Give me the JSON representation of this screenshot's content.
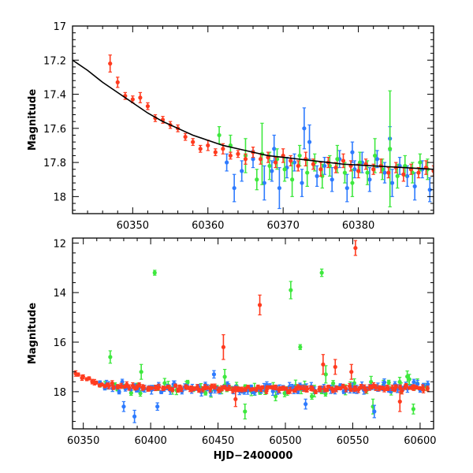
{
  "chart_data": [
    {
      "type": "scatter",
      "title": "",
      "xlabel": "",
      "ylabel": "Magnitude",
      "y_inverted": true,
      "xlim": [
        60342,
        60390
      ],
      "ylim": [
        17.0,
        18.1
      ],
      "x_ticks": [
        60350,
        60360,
        60370,
        60380
      ],
      "y_ticks": [
        17,
        17.2,
        17.4,
        17.6,
        17.8,
        18
      ],
      "series": [
        {
          "color": "#ff3b1f",
          "points": [
            [
              60347.0,
              17.22,
              0.05
            ],
            [
              60348.0,
              17.33,
              0.03
            ],
            [
              60349.0,
              17.41,
              0.02
            ],
            [
              60350.0,
              17.43,
              0.02
            ],
            [
              60351.0,
              17.42,
              0.03
            ],
            [
              60352.0,
              17.47,
              0.02
            ],
            [
              60353.0,
              17.54,
              0.02
            ],
            [
              60354.0,
              17.55,
              0.02
            ],
            [
              60355.0,
              17.58,
              0.02
            ],
            [
              60356.0,
              17.6,
              0.02
            ],
            [
              60357.0,
              17.65,
              0.02
            ],
            [
              60358.0,
              17.68,
              0.02
            ],
            [
              60359.0,
              17.72,
              0.02
            ],
            [
              60360.0,
              17.7,
              0.03
            ],
            [
              60361.0,
              17.74,
              0.02
            ],
            [
              60362.0,
              17.72,
              0.03
            ],
            [
              60363.0,
              17.76,
              0.02
            ],
            [
              60364.0,
              17.75,
              0.02
            ],
            [
              60365.0,
              17.78,
              0.03
            ],
            [
              60366.0,
              17.74,
              0.03
            ],
            [
              60367.0,
              17.78,
              0.03
            ],
            [
              60368.0,
              17.77,
              0.03
            ],
            [
              60369.0,
              17.8,
              0.03
            ],
            [
              60370.0,
              17.76,
              0.04
            ],
            [
              60371.0,
              17.79,
              0.03
            ],
            [
              60372.0,
              17.82,
              0.03
            ],
            [
              60373.0,
              17.78,
              0.04
            ],
            [
              60374.0,
              17.81,
              0.03
            ],
            [
              60375.0,
              17.84,
              0.04
            ],
            [
              60376.0,
              17.8,
              0.03
            ],
            [
              60377.0,
              17.83,
              0.03
            ],
            [
              60378.0,
              17.79,
              0.04
            ],
            [
              60379.0,
              17.82,
              0.03
            ],
            [
              60380.0,
              17.85,
              0.04
            ],
            [
              60381.0,
              17.81,
              0.03
            ],
            [
              60382.0,
              17.84,
              0.03
            ],
            [
              60383.0,
              17.82,
              0.04
            ],
            [
              60384.0,
              17.86,
              0.03
            ],
            [
              60385.0,
              17.83,
              0.03
            ],
            [
              60386.0,
              17.87,
              0.04
            ],
            [
              60387.0,
              17.84,
              0.03
            ],
            [
              60388.0,
              17.86,
              0.03
            ],
            [
              60389.0,
              17.83,
              0.04
            ],
            [
              60390.0,
              17.85,
              0.03
            ]
          ]
        },
        {
          "color": "#2e7bff",
          "points": [
            [
              60362.5,
              17.8,
              0.05
            ],
            [
              60363.5,
              17.95,
              0.08
            ],
            [
              60364.5,
              17.85,
              0.06
            ],
            [
              60366.0,
              17.78,
              0.05
            ],
            [
              60367.5,
              17.92,
              0.1
            ],
            [
              60368.5,
              17.85,
              0.06
            ],
            [
              60369.5,
              17.95,
              0.12
            ],
            [
              60370.5,
              17.83,
              0.06
            ],
            [
              60371.5,
              17.8,
              0.05
            ],
            [
              60372.5,
              17.92,
              0.08
            ],
            [
              60373.5,
              17.68,
              0.1
            ],
            [
              60374.5,
              17.88,
              0.06
            ],
            [
              60375.5,
              17.82,
              0.05
            ],
            [
              60376.5,
              17.9,
              0.07
            ],
            [
              60377.5,
              17.78,
              0.05
            ],
            [
              60378.5,
              17.95,
              0.08
            ],
            [
              60379.5,
              17.84,
              0.05
            ],
            [
              60380.5,
              17.8,
              0.06
            ],
            [
              60381.5,
              17.9,
              0.07
            ],
            [
              60382.5,
              17.78,
              0.05
            ],
            [
              60383.5,
              17.86,
              0.06
            ],
            [
              60384.5,
              17.92,
              0.08
            ],
            [
              60385.5,
              17.82,
              0.05
            ],
            [
              60386.5,
              17.88,
              0.06
            ],
            [
              60387.5,
              17.94,
              0.08
            ],
            [
              60388.5,
              17.84,
              0.05
            ],
            [
              60389.5,
              17.96,
              0.07
            ],
            [
              60372.8,
              17.6,
              0.12
            ],
            [
              60368.8,
              17.72,
              0.08
            ],
            [
              60379.2,
              17.74,
              0.06
            ],
            [
              60384.2,
              17.66,
              0.07
            ]
          ]
        },
        {
          "color": "#3ee83e",
          "points": [
            [
              60361.5,
              17.64,
              0.05
            ],
            [
              60363.0,
              17.7,
              0.06
            ],
            [
              60365.0,
              17.76,
              0.1
            ],
            [
              60366.5,
              17.9,
              0.06
            ],
            [
              60367.2,
              17.75,
              0.18
            ],
            [
              60368.2,
              17.82,
              0.08
            ],
            [
              60369.2,
              17.78,
              0.06
            ],
            [
              60370.2,
              17.84,
              0.07
            ],
            [
              60371.2,
              17.9,
              0.1
            ],
            [
              60372.2,
              17.76,
              0.06
            ],
            [
              60373.2,
              17.86,
              0.08
            ],
            [
              60374.2,
              17.8,
              0.05
            ],
            [
              60375.2,
              17.88,
              0.07
            ],
            [
              60376.2,
              17.82,
              0.06
            ],
            [
              60377.2,
              17.78,
              0.08
            ],
            [
              60378.2,
              17.86,
              0.06
            ],
            [
              60379.2,
              17.92,
              0.08
            ],
            [
              60380.2,
              17.8,
              0.06
            ],
            [
              60381.2,
              17.86,
              0.07
            ],
            [
              60382.2,
              17.76,
              0.1
            ],
            [
              60383.2,
              17.84,
              0.06
            ],
            [
              60384.2,
              17.72,
              0.34
            ],
            [
              60385.2,
              17.88,
              0.07
            ],
            [
              60386.2,
              17.82,
              0.06
            ],
            [
              60387.2,
              17.86,
              0.06
            ],
            [
              60388.2,
              17.8,
              0.05
            ],
            [
              60389.2,
              17.84,
              0.06
            ]
          ]
        }
      ],
      "model_curve": {
        "x": [
          60342,
          60344,
          60346,
          60348,
          60350,
          60352,
          60354,
          60356,
          60358,
          60360,
          60362,
          60364,
          60366,
          60368,
          60370,
          60372,
          60374,
          60376,
          60378,
          60380,
          60382,
          60384,
          60386,
          60388,
          60390
        ],
        "y": [
          17.2,
          17.26,
          17.33,
          17.39,
          17.45,
          17.51,
          17.56,
          17.6,
          17.64,
          17.67,
          17.7,
          17.72,
          17.74,
          17.76,
          17.77,
          17.78,
          17.79,
          17.8,
          17.81,
          17.815,
          17.82,
          17.825,
          17.83,
          17.835,
          17.84
        ]
      }
    },
    {
      "type": "scatter",
      "title": "",
      "xlabel": "HJD−2400000",
      "ylabel": "Magnitude",
      "y_inverted": true,
      "xlim": [
        60342,
        60610
      ],
      "ylim": [
        11.8,
        19.5
      ],
      "x_ticks": [
        60350,
        60400,
        60450,
        60500,
        60550,
        60600
      ],
      "y_ticks": [
        12,
        14,
        16,
        18
      ],
      "outliers": [
        {
          "color": "#3ee83e",
          "x": 60403,
          "y": 13.2,
          "err": 0.1
        },
        {
          "color": "#3ee83e",
          "x": 60504,
          "y": 13.9,
          "err": 0.35
        },
        {
          "color": "#3ee83e",
          "x": 60527,
          "y": 13.2,
          "err": 0.15
        },
        {
          "color": "#3ee83e",
          "x": 60511,
          "y": 16.2,
          "err": 0.1
        },
        {
          "color": "#3ee83e",
          "x": 60370,
          "y": 16.6,
          "err": 0.25
        },
        {
          "color": "#3ee83e",
          "x": 60393,
          "y": 17.2,
          "err": 0.3
        },
        {
          "color": "#3ee83e",
          "x": 60455,
          "y": 17.4,
          "err": 0.3
        },
        {
          "color": "#3ee83e",
          "x": 60530,
          "y": 17.3,
          "err": 0.35
        },
        {
          "color": "#3ee83e",
          "x": 60592,
          "y": 17.5,
          "err": 0.2
        },
        {
          "color": "#3ee83e",
          "x": 60565,
          "y": 18.6,
          "err": 0.3
        },
        {
          "color": "#3ee83e",
          "x": 60595,
          "y": 18.7,
          "err": 0.2
        },
        {
          "color": "#3ee83e",
          "x": 60470,
          "y": 18.8,
          "err": 0.3
        },
        {
          "color": "#ff3b1f",
          "x": 60552,
          "y": 12.2,
          "err": 0.3
        },
        {
          "color": "#ff3b1f",
          "x": 60481,
          "y": 14.5,
          "err": 0.4
        },
        {
          "color": "#ff3b1f",
          "x": 60454,
          "y": 16.2,
          "err": 0.5
        },
        {
          "color": "#ff3b1f",
          "x": 60528,
          "y": 16.9,
          "err": 0.4
        },
        {
          "color": "#ff3b1f",
          "x": 60537,
          "y": 17.0,
          "err": 0.3
        },
        {
          "color": "#ff3b1f",
          "x": 60549,
          "y": 17.2,
          "err": 0.3
        },
        {
          "color": "#ff3b1f",
          "x": 60585,
          "y": 18.4,
          "err": 0.4
        },
        {
          "color": "#ff3b1f",
          "x": 60463,
          "y": 18.3,
          "err": 0.3
        },
        {
          "color": "#2e7bff",
          "x": 60388,
          "y": 19.0,
          "err": 0.25
        },
        {
          "color": "#2e7bff",
          "x": 60447,
          "y": 17.3,
          "err": 0.15
        },
        {
          "color": "#2e7bff",
          "x": 60566,
          "y": 18.8,
          "err": 0.25
        },
        {
          "color": "#2e7bff",
          "x": 60380,
          "y": 18.6,
          "err": 0.2
        },
        {
          "color": "#2e7bff",
          "x": 60405,
          "y": 18.6,
          "err": 0.15
        },
        {
          "color": "#2e7bff",
          "x": 60515,
          "y": 18.5,
          "err": 0.2
        }
      ],
      "trend": {
        "x": [
          60344,
          60350,
          60360,
          60370,
          60380,
          60390,
          60400,
          60420,
          60450,
          60500,
          60550,
          60600,
          60606
        ],
        "y": [
          17.2,
          17.42,
          17.65,
          17.76,
          17.82,
          17.85,
          17.86,
          17.87,
          17.88,
          17.88,
          17.87,
          17.86,
          17.86
        ]
      },
      "series": [
        {
          "name": "",
          "color": "#3ee83e",
          "x_range": [
            60362,
            60606
          ],
          "n": 60,
          "scatter": 0.14
        },
        {
          "name": "",
          "color": "#2e7bff",
          "x_range": [
            60362,
            60606
          ],
          "n": 110,
          "scatter": 0.09
        },
        {
          "name": "",
          "color": "#ff3b1f",
          "x_range": [
            60344,
            60606
          ],
          "n": 140,
          "scatter": 0.05
        }
      ]
    }
  ]
}
